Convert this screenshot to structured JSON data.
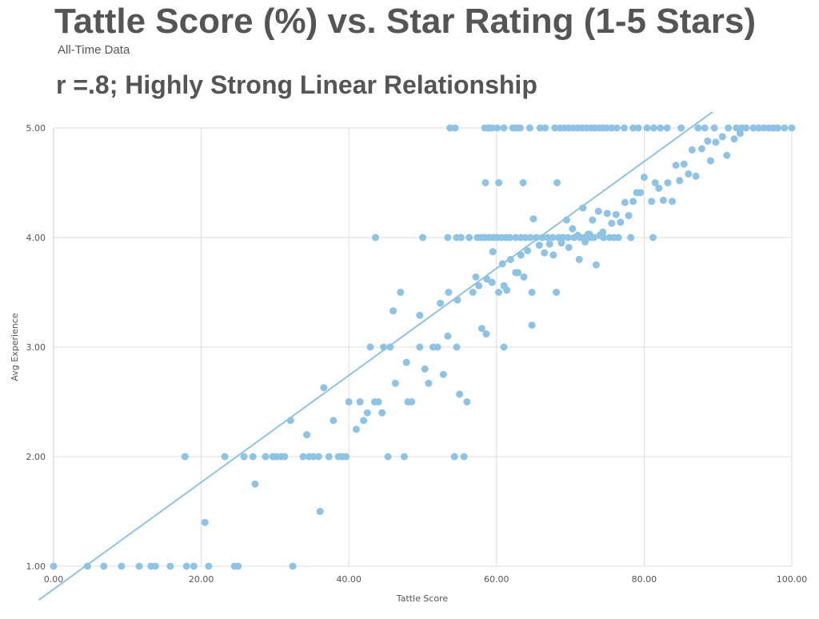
{
  "header": {
    "title": "Tattle Score (%) vs. Star Rating (1-5 Stars)",
    "subtitle": "All-Time Data",
    "headline": "r =.8; Highly Strong Linear Relationship"
  },
  "colors": {
    "point": "#8fc3e4",
    "trend": "#8fc3e4",
    "grid": "#dddddd"
  },
  "chart_data": {
    "type": "scatter",
    "xlabel": "Tattle Score",
    "ylabel": "Avg Experience",
    "xlim": [
      0,
      100
    ],
    "ylim": [
      1,
      5
    ],
    "xticks": [
      "0.00",
      "20.00",
      "40.00",
      "60.00",
      "80.00",
      "100.00"
    ],
    "yticks": [
      "1.00",
      "2.00",
      "3.00",
      "4.00",
      "5.00"
    ],
    "grid": true,
    "trendline": {
      "slope": 0.0488,
      "intercept": 0.79
    },
    "points": [
      [
        0,
        1
      ],
      [
        4.6,
        1
      ],
      [
        6.8,
        1
      ],
      [
        9.2,
        1
      ],
      [
        11.6,
        1
      ],
      [
        13.2,
        1
      ],
      [
        13.8,
        1
      ],
      [
        15.8,
        1
      ],
      [
        18,
        1
      ],
      [
        19,
        1
      ],
      [
        21,
        1
      ],
      [
        24.5,
        1
      ],
      [
        25,
        1
      ],
      [
        32.4,
        1
      ],
      [
        17.8,
        2
      ],
      [
        23.2,
        2
      ],
      [
        25.8,
        2
      ],
      [
        27,
        2
      ],
      [
        28.7,
        2
      ],
      [
        29.7,
        2
      ],
      [
        30.2,
        2
      ],
      [
        30.8,
        2
      ],
      [
        31.3,
        2
      ],
      [
        33.8,
        2
      ],
      [
        34.6,
        2
      ],
      [
        35.2,
        2
      ],
      [
        35.9,
        2
      ],
      [
        37.3,
        2
      ],
      [
        38.6,
        2
      ],
      [
        39.1,
        2
      ],
      [
        39.6,
        2
      ],
      [
        45.3,
        2
      ],
      [
        47.5,
        2
      ],
      [
        54.3,
        2
      ],
      [
        55.6,
        2
      ],
      [
        20.5,
        1.4
      ],
      [
        27.3,
        1.75
      ],
      [
        36.1,
        1.5
      ],
      [
        32.1,
        2.33
      ],
      [
        34.3,
        2.2
      ],
      [
        36.6,
        2.63
      ],
      [
        37.9,
        2.33
      ],
      [
        40,
        2.5
      ],
      [
        41,
        2.25
      ],
      [
        41.5,
        2.5
      ],
      [
        42,
        2.33
      ],
      [
        42.5,
        2.4
      ],
      [
        43.5,
        2.5
      ],
      [
        44,
        2.5
      ],
      [
        44.5,
        2.4
      ],
      [
        48,
        2.5
      ],
      [
        48.5,
        2.5
      ],
      [
        55,
        2.57
      ],
      [
        56,
        2.5
      ],
      [
        42.9,
        3
      ],
      [
        44.7,
        3
      ],
      [
        45.6,
        3
      ],
      [
        46.3,
        2.67
      ],
      [
        47.8,
        2.86
      ],
      [
        49.6,
        3
      ],
      [
        50.3,
        2.8
      ],
      [
        50.8,
        2.67
      ],
      [
        51.4,
        3
      ],
      [
        52,
        3
      ],
      [
        52.8,
        2.75
      ],
      [
        53.4,
        3.1
      ],
      [
        54.6,
        3
      ],
      [
        58,
        3.17
      ],
      [
        58.6,
        3.12
      ],
      [
        61,
        3
      ],
      [
        64.8,
        3.2
      ],
      [
        46,
        3.33
      ],
      [
        47,
        3.5
      ],
      [
        49.6,
        3.29
      ],
      [
        52.4,
        3.4
      ],
      [
        53.5,
        3.5
      ],
      [
        54.7,
        3.43
      ],
      [
        56.8,
        3.5
      ],
      [
        57.2,
        3.64
      ],
      [
        57.6,
        3.56
      ],
      [
        58.7,
        3.62
      ],
      [
        59.4,
        3.59
      ],
      [
        60.3,
        3.5
      ],
      [
        61,
        3.56
      ],
      [
        61.4,
        3.52
      ],
      [
        61.9,
        3.8
      ],
      [
        62.6,
        3.68
      ],
      [
        62.9,
        3.68
      ],
      [
        63.3,
        3.84
      ],
      [
        63.7,
        3.64
      ],
      [
        64.2,
        3.88
      ],
      [
        64.8,
        3.5
      ],
      [
        65.8,
        3.93
      ],
      [
        66.5,
        3.86
      ],
      [
        67.2,
        3.94
      ],
      [
        67.7,
        3.84
      ],
      [
        68.1,
        3.5
      ],
      [
        69.8,
        3.91
      ],
      [
        71.2,
        3.8
      ],
      [
        72,
        3.96
      ],
      [
        72.6,
        4.03
      ],
      [
        73.5,
        3.75
      ],
      [
        74,
        4.02
      ],
      [
        43.6,
        4
      ],
      [
        50,
        4
      ],
      [
        53.4,
        4
      ],
      [
        54.6,
        4
      ],
      [
        55.2,
        4
      ],
      [
        56.3,
        4
      ],
      [
        57.4,
        4
      ],
      [
        57.9,
        4
      ],
      [
        58.4,
        4
      ],
      [
        59,
        4
      ],
      [
        59.6,
        4
      ],
      [
        60.1,
        4
      ],
      [
        60.7,
        4
      ],
      [
        61.3,
        4
      ],
      [
        61.8,
        4
      ],
      [
        62.6,
        4
      ],
      [
        63.3,
        4
      ],
      [
        63.9,
        4
      ],
      [
        64.6,
        4
      ],
      [
        65.4,
        4
      ],
      [
        66.2,
        4
      ],
      [
        66.9,
        4
      ],
      [
        67.6,
        4
      ],
      [
        68.4,
        4
      ],
      [
        69,
        4
      ],
      [
        69.7,
        4
      ],
      [
        70.5,
        4
      ],
      [
        71.3,
        4
      ],
      [
        71.9,
        4
      ],
      [
        72.7,
        4
      ],
      [
        73.2,
        4
      ],
      [
        74.5,
        4
      ],
      [
        75.3,
        4
      ],
      [
        75.9,
        4
      ],
      [
        76.5,
        4
      ],
      [
        78.2,
        4
      ],
      [
        81.2,
        4
      ],
      [
        59.5,
        3.87
      ],
      [
        60.8,
        3.76
      ],
      [
        65,
        4.17
      ],
      [
        68.8,
        3.95
      ],
      [
        69.5,
        4.16
      ],
      [
        70.3,
        4.08
      ],
      [
        71,
        4.02
      ],
      [
        71.7,
        4.27
      ],
      [
        72.4,
        4.03
      ],
      [
        73,
        4.16
      ],
      [
        73.8,
        4.24
      ],
      [
        74.4,
        4.05
      ],
      [
        75,
        4.22
      ],
      [
        75.6,
        4.13
      ],
      [
        76.2,
        4.21
      ],
      [
        76.8,
        4.14
      ],
      [
        77.4,
        4.32
      ],
      [
        77.9,
        4.2
      ],
      [
        78.5,
        4.33
      ],
      [
        79,
        4.41
      ],
      [
        79.5,
        4.41
      ],
      [
        80,
        4.55
      ],
      [
        81,
        4.33
      ],
      [
        81.5,
        4.5
      ],
      [
        82,
        4.45
      ],
      [
        82.6,
        4.34
      ],
      [
        83.2,
        4.5
      ],
      [
        83.8,
        4.33
      ],
      [
        84.3,
        4.66
      ],
      [
        84.8,
        4.52
      ],
      [
        85.4,
        4.67
      ],
      [
        86,
        4.58
      ],
      [
        86.5,
        4.8
      ],
      [
        87,
        4.56
      ],
      [
        87.8,
        4.81
      ],
      [
        88.6,
        4.88
      ],
      [
        89,
        4.7
      ],
      [
        89.7,
        4.87
      ],
      [
        90.6,
        4.92
      ],
      [
        91.2,
        4.75
      ],
      [
        92.2,
        4.9
      ],
      [
        93,
        4.95
      ],
      [
        58.5,
        4.5
      ],
      [
        60.3,
        4.5
      ],
      [
        63.6,
        4.5
      ],
      [
        68.2,
        4.5
      ],
      [
        53.7,
        5
      ],
      [
        54.4,
        5
      ],
      [
        58.4,
        5
      ],
      [
        58.9,
        5
      ],
      [
        59.4,
        5
      ],
      [
        60.1,
        5
      ],
      [
        61,
        5
      ],
      [
        62.2,
        5
      ],
      [
        62.7,
        5
      ],
      [
        63.2,
        5
      ],
      [
        64.5,
        5
      ],
      [
        65.9,
        5
      ],
      [
        66.6,
        5
      ],
      [
        67.9,
        5
      ],
      [
        68.6,
        5
      ],
      [
        69.2,
        5
      ],
      [
        69.8,
        5
      ],
      [
        70.4,
        5
      ],
      [
        71,
        5
      ],
      [
        71.6,
        5
      ],
      [
        72.2,
        5
      ],
      [
        72.8,
        5
      ],
      [
        73.3,
        5
      ],
      [
        73.9,
        5
      ],
      [
        74.4,
        5
      ],
      [
        74.9,
        5
      ],
      [
        75.6,
        5
      ],
      [
        76.3,
        5
      ],
      [
        77.3,
        5
      ],
      [
        78.5,
        5
      ],
      [
        79.2,
        5
      ],
      [
        80.4,
        5
      ],
      [
        81.3,
        5
      ],
      [
        82.2,
        5
      ],
      [
        83.1,
        5
      ],
      [
        85,
        5
      ],
      [
        87.3,
        5
      ],
      [
        88.2,
        5
      ],
      [
        89.5,
        5
      ],
      [
        91.4,
        5
      ],
      [
        92.5,
        5
      ],
      [
        93.2,
        5
      ],
      [
        93.8,
        5
      ],
      [
        94.8,
        5
      ],
      [
        95.5,
        5
      ],
      [
        96.2,
        5
      ],
      [
        96.9,
        5
      ],
      [
        97.5,
        5
      ],
      [
        98.1,
        5
      ],
      [
        99,
        5
      ],
      [
        100,
        5
      ]
    ]
  }
}
